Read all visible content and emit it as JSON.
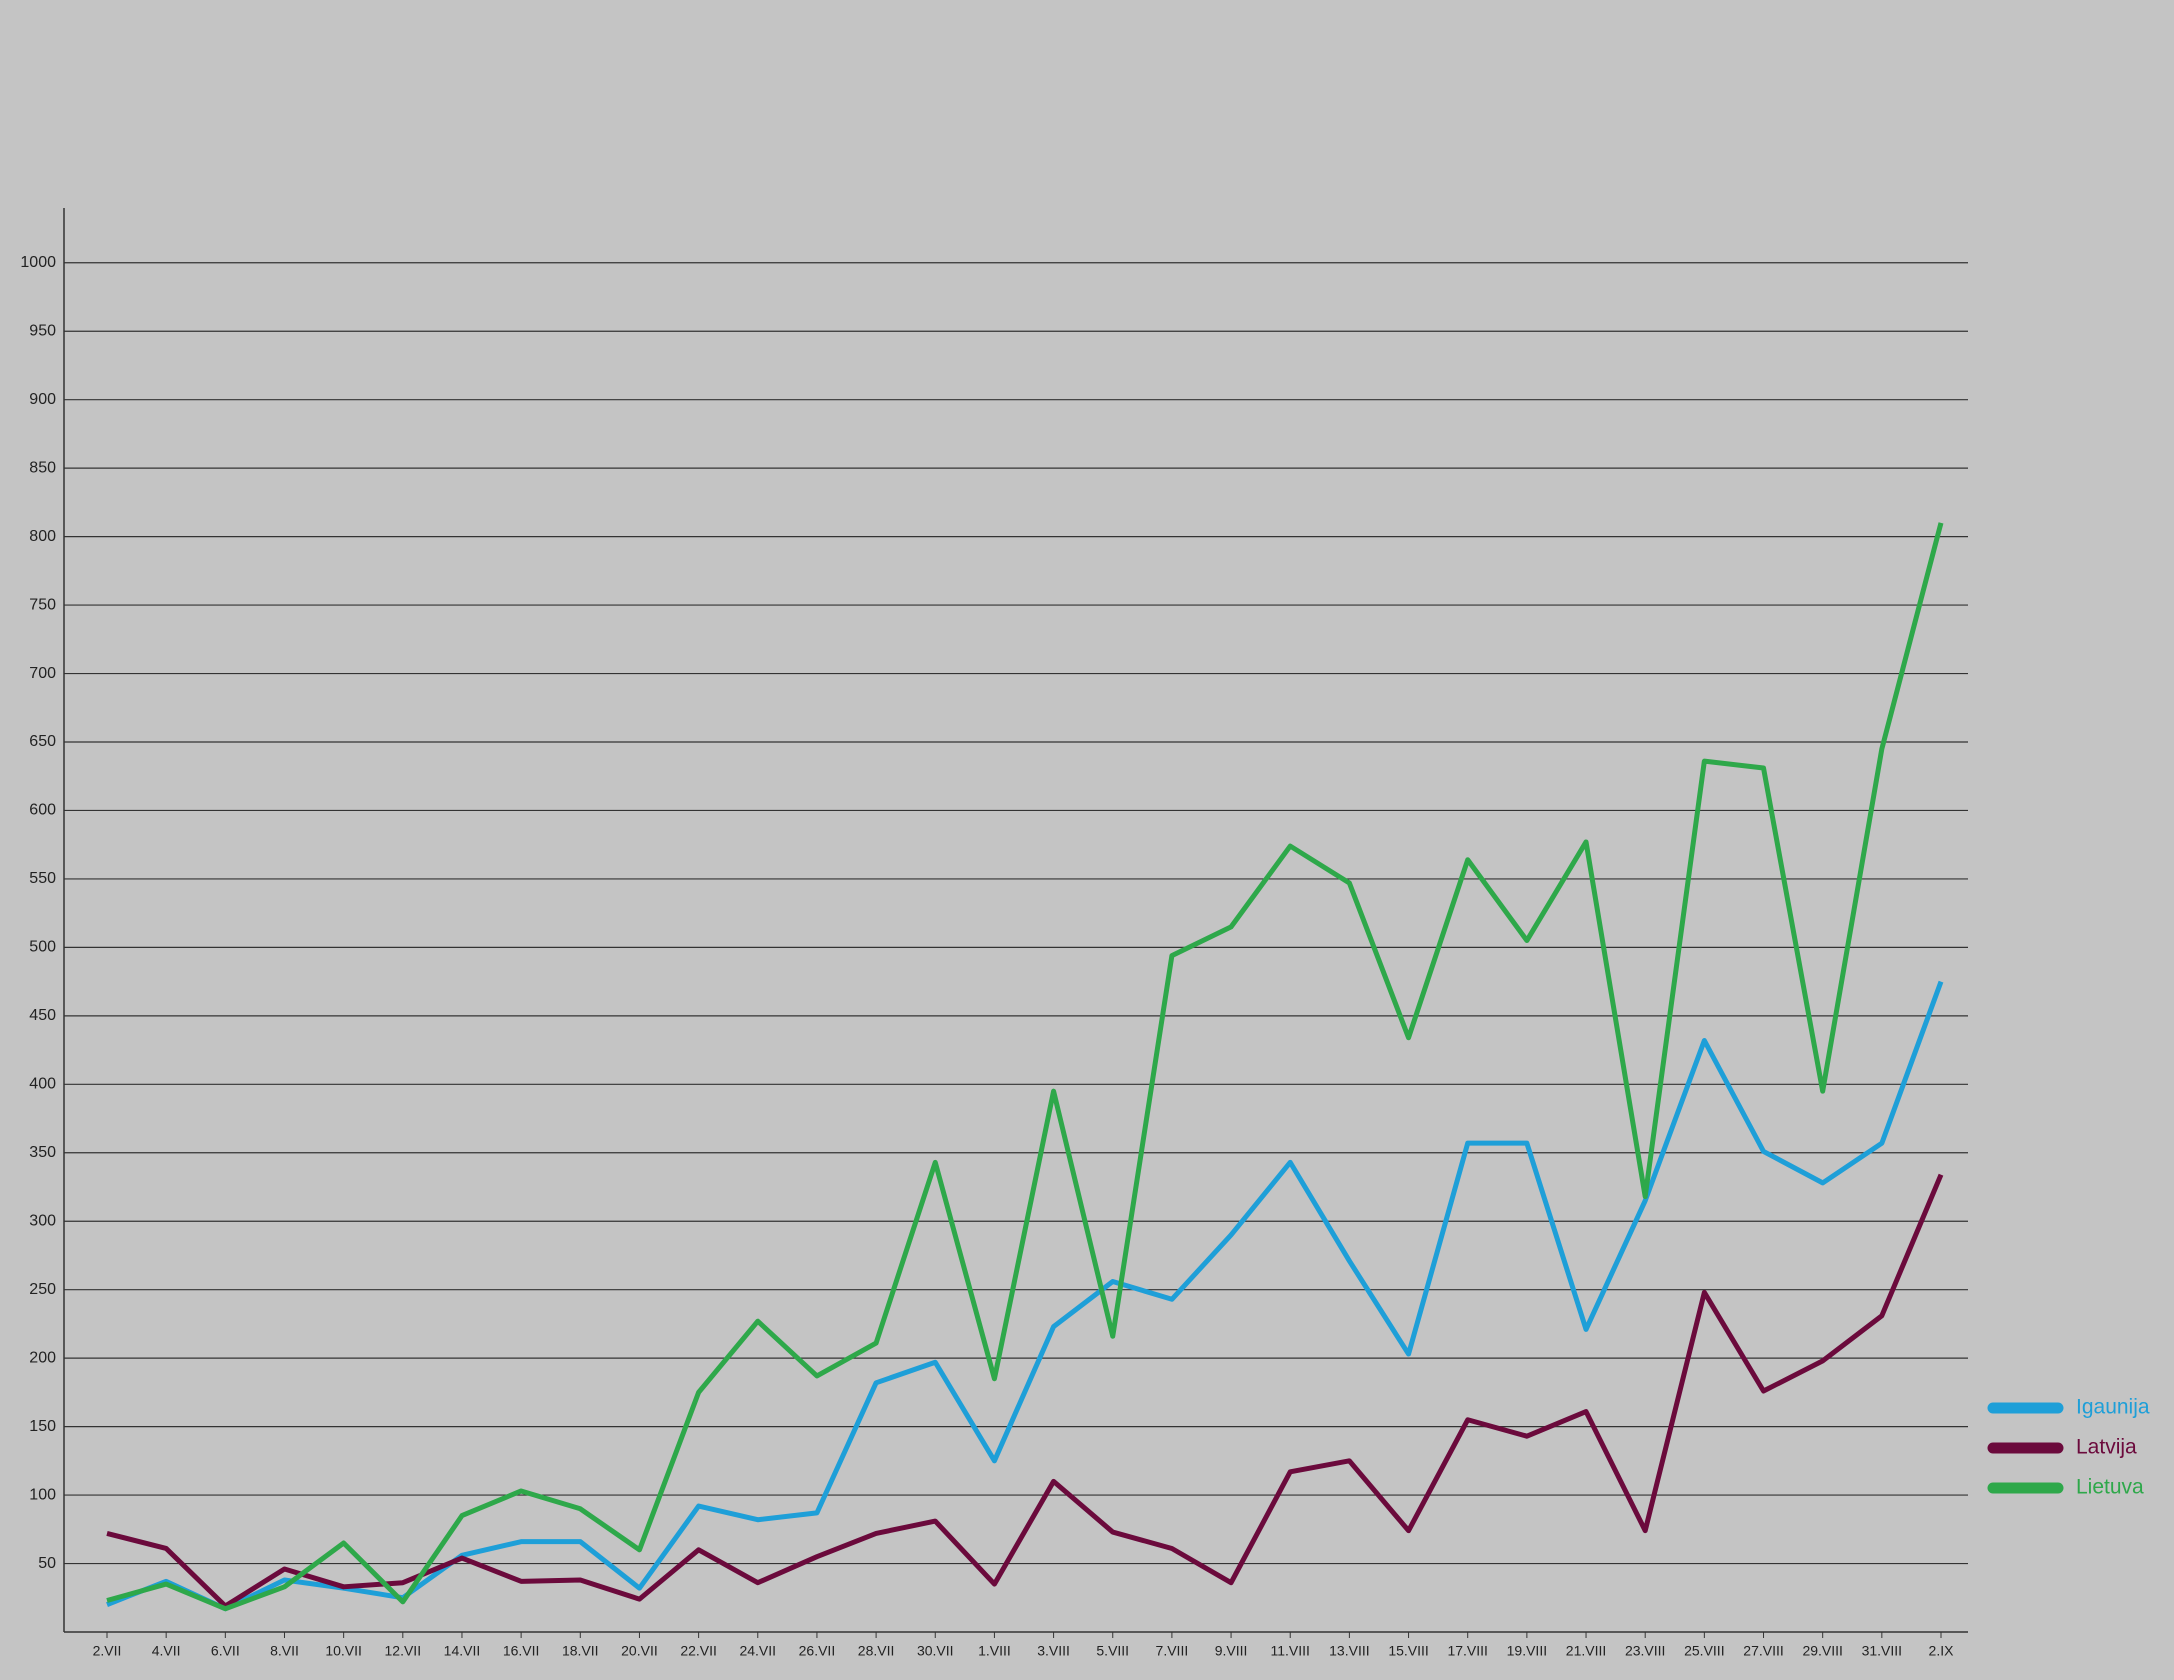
{
  "chart_data": {
    "type": "line",
    "categories": [
      "2.VII",
      "4.VII",
      "6.VII",
      "8.VII",
      "10.VII",
      "12.VII",
      "14.VII",
      "16.VII",
      "18.VII",
      "20.VII",
      "22.VII",
      "24.VII",
      "26.VII",
      "28.VII",
      "30.VII",
      "1.VIII",
      "3.VIII",
      "5.VIII",
      "7.VIII",
      "9.VIII",
      "11.VIII",
      "13.VIII",
      "15.VIII",
      "17.VIII",
      "19.VIII",
      "21.VIII",
      "23.VIII",
      "25.VIII",
      "27.VIII",
      "29.VIII",
      "31.VIII",
      "2.IX"
    ],
    "series": [
      {
        "name": "Igaunija",
        "color": "#1e9fd8",
        "values": [
          20,
          37,
          17,
          38,
          32,
          25,
          56,
          66,
          66,
          32,
          92,
          82,
          87,
          182,
          197,
          125,
          223,
          256,
          243,
          290,
          343,
          271,
          203,
          357,
          357,
          221,
          315,
          432,
          351,
          328,
          357,
          475
        ]
      },
      {
        "name": "Latvija",
        "color": "#6b0a3c",
        "values": [
          72,
          61,
          19,
          46,
          33,
          36,
          54,
          37,
          38,
          24,
          60,
          36,
          55,
          72,
          81,
          35,
          110,
          73,
          61,
          36,
          117,
          125,
          74,
          155,
          143,
          161,
          74,
          248,
          176,
          198,
          231,
          334
        ]
      },
      {
        "name": "Lietuva",
        "color": "#2ea84a",
        "values": [
          23,
          35,
          17,
          33,
          65,
          22,
          85,
          103,
          90,
          60,
          175,
          227,
          187,
          211,
          343,
          185,
          395,
          216,
          494,
          515,
          574,
          547,
          434,
          564,
          505,
          577,
          318,
          636,
          631,
          395,
          645,
          810
        ]
      }
    ],
    "ylim": [
      0,
      1040
    ],
    "yticks": [
      50,
      100,
      150,
      200,
      250,
      300,
      350,
      400,
      450,
      500,
      550,
      600,
      650,
      700,
      750,
      800,
      850,
      900,
      950,
      1000
    ],
    "grid": true,
    "legend": "right"
  }
}
